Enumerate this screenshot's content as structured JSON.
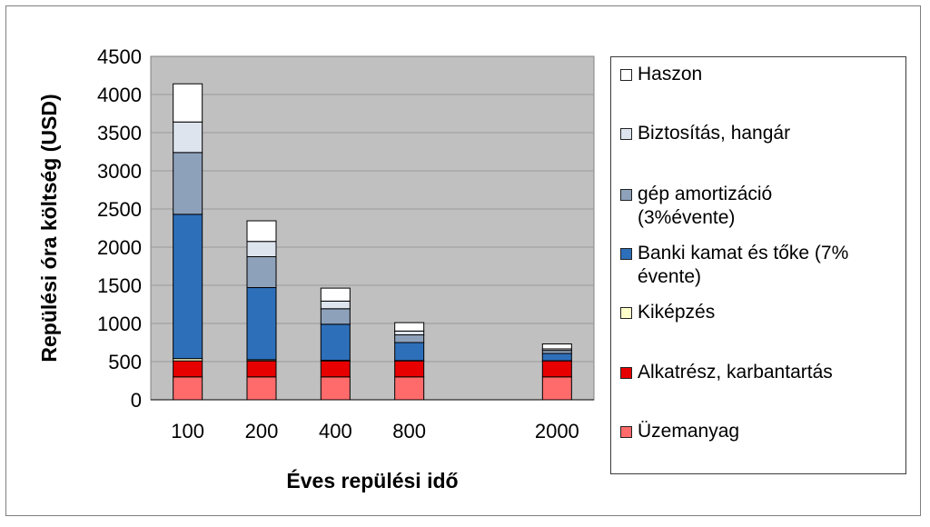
{
  "chart_data": {
    "type": "bar",
    "stacked": true,
    "title": "",
    "xlabel": "Éves repülési idő",
    "ylabel": "Repülési óra költség (USD)",
    "ylim": [
      0,
      4500
    ],
    "yticks": [
      "0",
      "500",
      "1000",
      "1500",
      "2000",
      "2500",
      "3000",
      "3500",
      "4000",
      "4500"
    ],
    "categories": [
      "100",
      "200",
      "400",
      "800",
      "",
      "2000"
    ],
    "grid": true,
    "legend_position": "right",
    "series": [
      {
        "name": "Üzemanyag",
        "color": "#ff6b6b",
        "values": [
          300,
          300,
          300,
          300,
          0,
          300
        ]
      },
      {
        "name": "Alkatrész, karbantartás",
        "color": "#e60000",
        "values": [
          210,
          210,
          210,
          210,
          0,
          210
        ]
      },
      {
        "name": "Kiképzés",
        "color": "#ffffcc",
        "values": [
          30,
          15,
          8,
          4,
          0,
          2
        ]
      },
      {
        "name": "Banki kamat és tőke  (7% évente)",
        "color": "#2e6fba",
        "values": [
          1890,
          945,
          472,
          236,
          0,
          95
        ]
      },
      {
        "name": "gép amortizáció (3%évente)",
        "color": "#8ea1bb",
        "values": [
          810,
          405,
          203,
          101,
          0,
          40
        ]
      },
      {
        "name": "Biztosítás, hangár",
        "color": "#dde4ee",
        "values": [
          400,
          200,
          100,
          50,
          0,
          20
        ]
      },
      {
        "name": "Haszon",
        "color": "#ffffff",
        "values": [
          500,
          270,
          170,
          110,
          0,
          65
        ]
      }
    ]
  },
  "legend": {
    "items": [
      {
        "label": "Haszon",
        "color": "#ffffff"
      },
      {
        "label": "Biztosítás, hangár",
        "color": "#dde4ee"
      },
      {
        "label": "gép amortizáció (3%évente)",
        "color": "#8ea1bb"
      },
      {
        "label": "Banki kamat és tőke  (7% évente)",
        "color": "#2e6fba"
      },
      {
        "label": "Kiképzés",
        "color": "#ffffcc"
      },
      {
        "label": "Alkatrész, karbantartás",
        "color": "#e60000"
      },
      {
        "label": "Üzemanyag",
        "color": "#ff6b6b"
      }
    ]
  }
}
